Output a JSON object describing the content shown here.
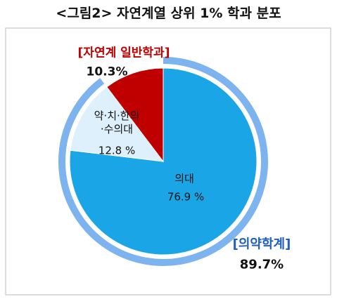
{
  "chart_data": {
    "type": "pie",
    "title": "<그림2> 자연계열 상위 1% 학과 분포",
    "categories": [
      "의대",
      "약·치·한의\n·수의대",
      "[자연계 일반학과]"
    ],
    "values": [
      76.9,
      12.8,
      10.3
    ],
    "value_labels": [
      "76.9 %",
      "12.8 %",
      "10.3%"
    ],
    "colors": [
      "#19a5e6",
      "#ddf0fb",
      "#c00000"
    ],
    "label_colors": [
      "#111111",
      "#111111",
      "#c00000"
    ],
    "group": {
      "name": "[의약학계]",
      "value": 89.7,
      "value_label": "89.7%",
      "color": "#7db3ee",
      "label_color": "#1f5fbf"
    }
  }
}
